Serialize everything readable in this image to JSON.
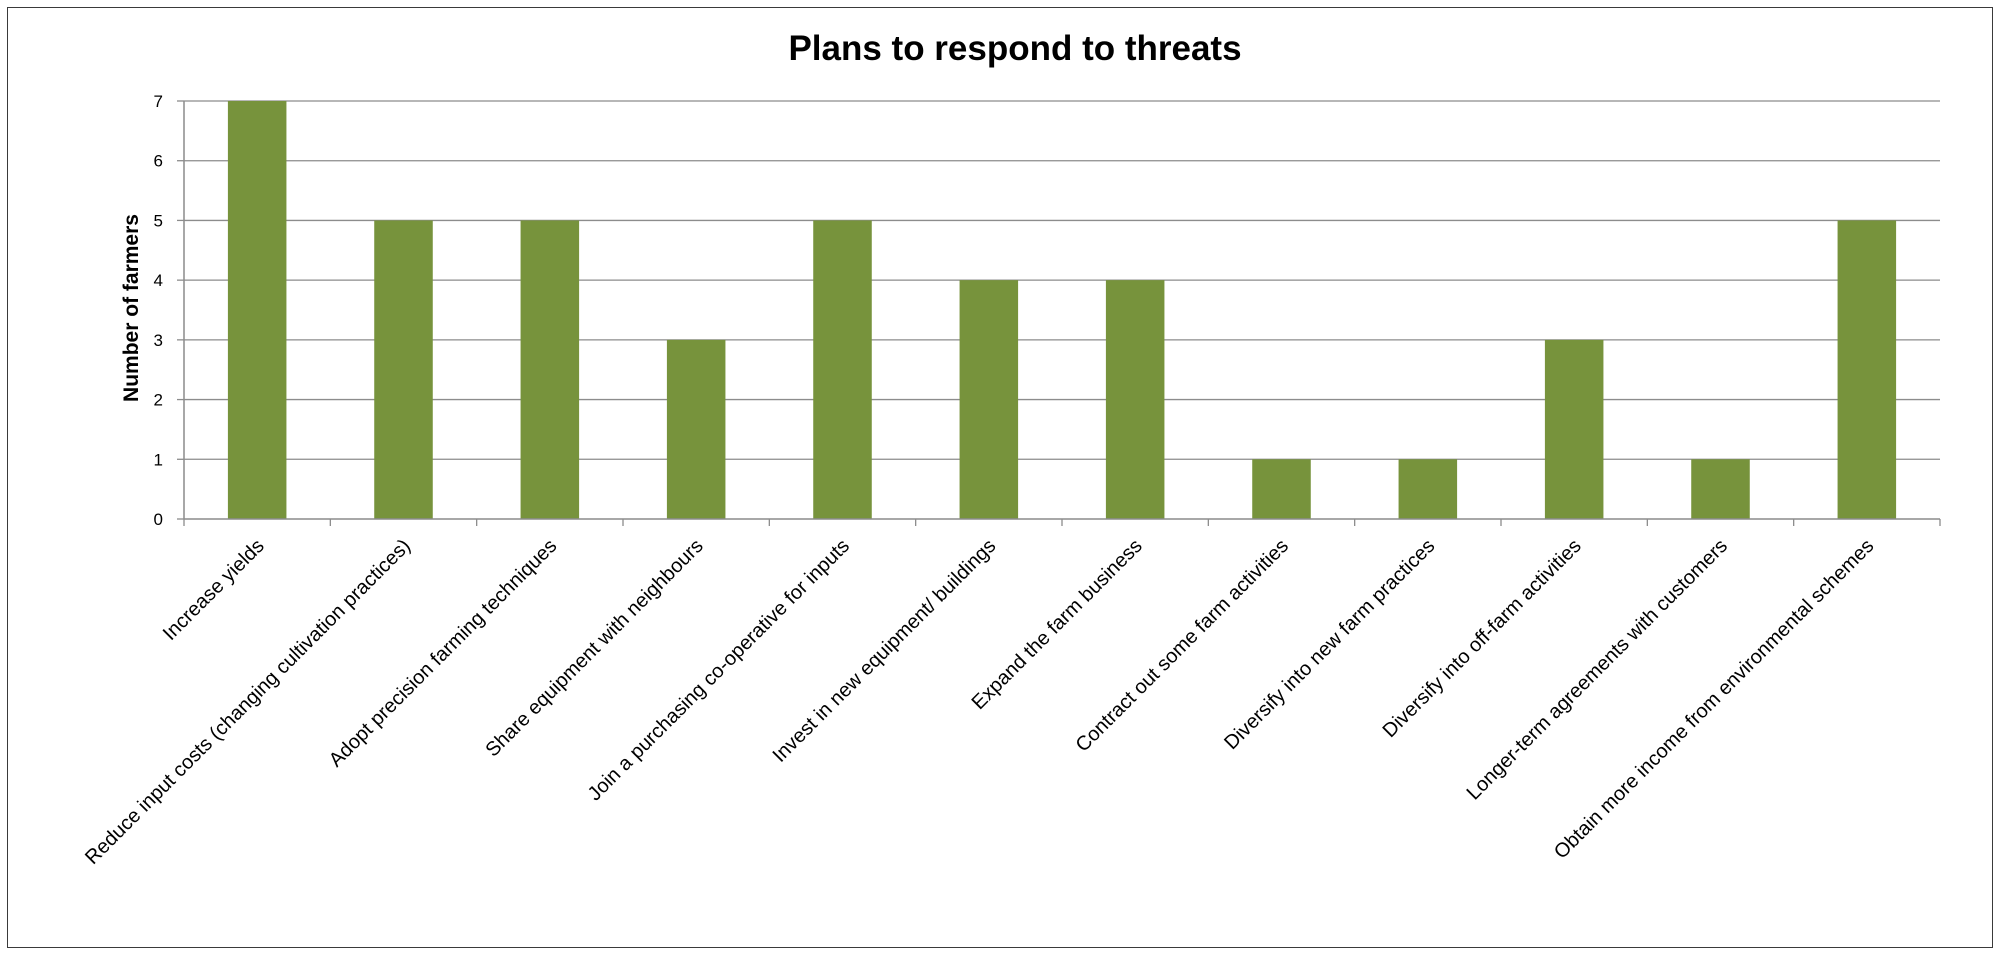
{
  "chart_data": {
    "type": "bar",
    "title": "Plans to respond to threats",
    "xlabel": "",
    "ylabel": "Number of farmers",
    "ylim": [
      0,
      7
    ],
    "yticks": [
      0,
      1,
      2,
      3,
      4,
      5,
      6,
      7
    ],
    "grid": true,
    "legend": "none",
    "bar_color": "#77933c",
    "categories": [
      "Increase yields",
      "Reduce input costs (changing cultivation practices)",
      "Adopt precision farming techniques",
      "Share equipment with neighbours",
      "Join a purchasing co-operative for inputs",
      "Invest in new equipment/ buildings",
      "Expand the farm business",
      "Contract out some farm activities",
      "Diversify into new farm practices",
      "Diversify into off-farm activities",
      "Longer-term agreements with customers",
      "Obtain more income from environmental schemes"
    ],
    "values": [
      7,
      5,
      5,
      3,
      5,
      4,
      4,
      1,
      1,
      3,
      1,
      5
    ]
  }
}
